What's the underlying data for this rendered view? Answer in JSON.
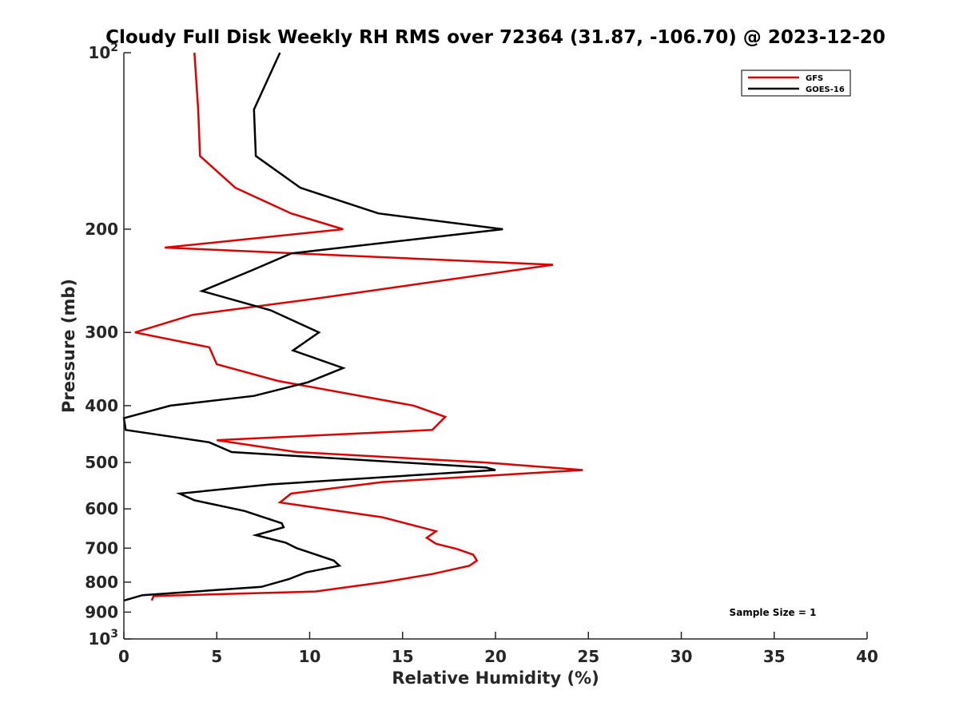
{
  "chart_data": {
    "type": "line",
    "title": "Cloudy Full Disk Weekly RH RMS over 72364 (31.87, -106.70) @ 2023-12-20",
    "xlabel": "Relative Humidity (%)",
    "ylabel": "Pressure (mb)",
    "xlim": [
      0,
      40
    ],
    "ylim": [
      100,
      1000
    ],
    "y_scale": "log",
    "y_reversed": true,
    "x_ticks": [
      0,
      5,
      10,
      15,
      20,
      25,
      30,
      35,
      40
    ],
    "y_ticks": [
      {
        "value": 100,
        "base": "10",
        "exp": "2"
      },
      {
        "value": 200,
        "label": "200"
      },
      {
        "value": 300,
        "label": "300"
      },
      {
        "value": 400,
        "label": "400"
      },
      {
        "value": 500,
        "label": "500"
      },
      {
        "value": 600,
        "label": "600"
      },
      {
        "value": 700,
        "label": "700"
      },
      {
        "value": 800,
        "label": "800"
      },
      {
        "value": 900,
        "label": "900"
      },
      {
        "value": 1000,
        "base": "10",
        "exp": "3"
      }
    ],
    "grid": false,
    "legend_position": "top-right",
    "annotation": "Sample Size = 1",
    "series": [
      {
        "name": "GFS",
        "color": "#e00000",
        "points": [
          [
            3.8,
            100
          ],
          [
            4.0,
            125
          ],
          [
            4.1,
            150
          ],
          [
            6.0,
            170
          ],
          [
            9.0,
            188
          ],
          [
            11.8,
            200
          ],
          [
            2.2,
            215
          ],
          [
            23.1,
            230
          ],
          [
            10.6,
            262
          ],
          [
            3.7,
            280
          ],
          [
            0.6,
            300
          ],
          [
            4.6,
            318
          ],
          [
            5.0,
            340
          ],
          [
            8.3,
            363
          ],
          [
            15.6,
            400
          ],
          [
            17.3,
            418
          ],
          [
            16.6,
            440
          ],
          [
            5.0,
            458
          ],
          [
            9.3,
            480
          ],
          [
            19.4,
            500
          ],
          [
            24.7,
            515
          ],
          [
            13.9,
            540
          ],
          [
            9.0,
            565
          ],
          [
            8.4,
            585
          ],
          [
            13.9,
            620
          ],
          [
            16.8,
            655
          ],
          [
            16.3,
            672
          ],
          [
            16.8,
            688
          ],
          [
            17.9,
            702
          ],
          [
            18.8,
            718
          ],
          [
            19.0,
            735
          ],
          [
            18.6,
            750
          ],
          [
            16.6,
            775
          ],
          [
            14.0,
            800
          ],
          [
            10.3,
            830
          ],
          [
            1.6,
            845
          ],
          [
            1.5,
            860
          ]
        ]
      },
      {
        "name": "GOES-16",
        "color": "#000000",
        "points": [
          [
            8.4,
            100
          ],
          [
            7.0,
            125
          ],
          [
            7.1,
            150
          ],
          [
            9.5,
            170
          ],
          [
            13.7,
            188
          ],
          [
            20.4,
            200
          ],
          [
            9.0,
            220
          ],
          [
            6.9,
            235
          ],
          [
            4.2,
            255
          ],
          [
            7.9,
            275
          ],
          [
            10.5,
            300
          ],
          [
            9.1,
            322
          ],
          [
            11.8,
            345
          ],
          [
            9.9,
            365
          ],
          [
            7.0,
            385
          ],
          [
            2.5,
            400
          ],
          [
            0.0,
            420
          ],
          [
            0.1,
            440
          ],
          [
            4.6,
            462
          ],
          [
            5.8,
            480
          ],
          [
            19.5,
            510
          ],
          [
            20.0,
            515
          ],
          [
            7.9,
            545
          ],
          [
            3.0,
            565
          ],
          [
            3.8,
            580
          ],
          [
            6.5,
            605
          ],
          [
            8.5,
            635
          ],
          [
            8.6,
            645
          ],
          [
            7.1,
            665
          ],
          [
            8.7,
            685
          ],
          [
            9.3,
            700
          ],
          [
            11.3,
            735
          ],
          [
            11.6,
            750
          ],
          [
            9.8,
            770
          ],
          [
            8.9,
            790
          ],
          [
            7.4,
            815
          ],
          [
            1.0,
            842
          ],
          [
            0.0,
            860
          ]
        ]
      }
    ]
  }
}
